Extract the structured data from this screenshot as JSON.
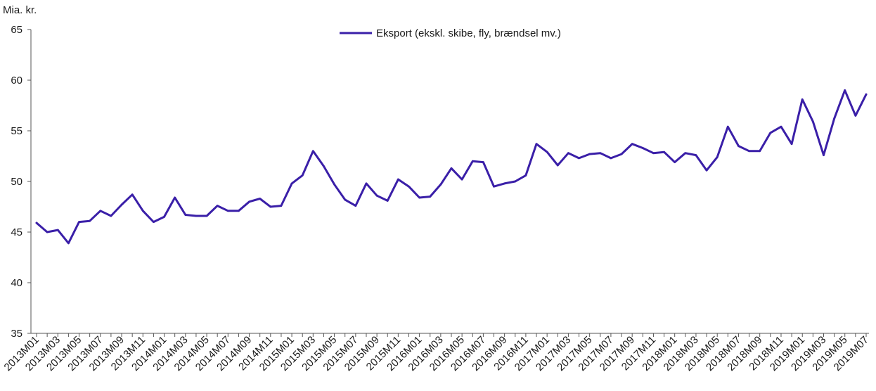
{
  "chart_data": {
    "type": "line",
    "title": "",
    "ylabel": "Mia. kr.",
    "xlabel": "",
    "ylim": [
      35,
      65
    ],
    "yticks": [
      35,
      40,
      45,
      50,
      55,
      60,
      65
    ],
    "grid": false,
    "legend_position": "top-center",
    "x": [
      "2013M01",
      "2013M02",
      "2013M03",
      "2013M04",
      "2013M05",
      "2013M06",
      "2013M07",
      "2013M08",
      "2013M09",
      "2013M10",
      "2013M11",
      "2013M12",
      "2014M01",
      "2014M02",
      "2014M03",
      "2014M04",
      "2014M05",
      "2014M06",
      "2014M07",
      "2014M08",
      "2014M09",
      "2014M10",
      "2014M11",
      "2014M12",
      "2015M01",
      "2015M02",
      "2015M03",
      "2015M04",
      "2015M05",
      "2015M06",
      "2015M07",
      "2015M08",
      "2015M09",
      "2015M10",
      "2015M11",
      "2015M12",
      "2016M01",
      "2016M02",
      "2016M03",
      "2016M04",
      "2016M05",
      "2016M06",
      "2016M07",
      "2016M08",
      "2016M09",
      "2016M10",
      "2016M11",
      "2016M12",
      "2017M01",
      "2017M02",
      "2017M03",
      "2017M04",
      "2017M05",
      "2017M06",
      "2017M07",
      "2017M08",
      "2017M09",
      "2017M10",
      "2017M11",
      "2017M12",
      "2018M01",
      "2018M02",
      "2018M03",
      "2018M04",
      "2018M05",
      "2018M06",
      "2018M07",
      "2018M08",
      "2018M09",
      "2018M10",
      "2018M11",
      "2018M12",
      "2019M01",
      "2019M02",
      "2019M03",
      "2019M04",
      "2019M05",
      "2019M06",
      "2019M07"
    ],
    "xtick_labels": [
      "2013M01",
      "2013M03",
      "2013M05",
      "2013M07",
      "2013M09",
      "2013M11",
      "2014M01",
      "2014M03",
      "2014M05",
      "2014M07",
      "2014M09",
      "2014M11",
      "2015M01",
      "2015M03",
      "2015M05",
      "2015M07",
      "2015M09",
      "2015M11",
      "2016M01",
      "2016M03",
      "2016M05",
      "2016M07",
      "2016M09",
      "2016M11",
      "2017M01",
      "2017M03",
      "2017M05",
      "2017M07",
      "2017M09",
      "2017M11",
      "2018M01",
      "2018M03",
      "2018M05",
      "2018M07",
      "2018M09",
      "2018M11",
      "2019M01",
      "2019M03",
      "2019M05",
      "2019M07"
    ],
    "series": [
      {
        "name": "Eksport (ekskl. skibe, fly, brændsel mv.)",
        "color": "#3a1fa8",
        "values": [
          45.9,
          45.0,
          45.2,
          43.9,
          46.0,
          46.1,
          47.1,
          46.6,
          47.7,
          48.7,
          47.1,
          46.0,
          46.5,
          48.4,
          46.7,
          46.6,
          46.6,
          47.6,
          47.1,
          47.1,
          48.0,
          48.3,
          47.5,
          47.6,
          49.8,
          50.6,
          53.0,
          51.5,
          49.7,
          48.2,
          47.6,
          49.8,
          48.6,
          48.1,
          50.2,
          49.5,
          48.4,
          48.5,
          49.7,
          51.3,
          50.2,
          52.0,
          51.9,
          49.5,
          49.8,
          50.0,
          50.6,
          53.7,
          52.9,
          51.6,
          52.8,
          52.3,
          52.7,
          52.8,
          52.3,
          52.7,
          53.7,
          53.3,
          52.8,
          52.9,
          51.9,
          52.8,
          52.6,
          51.1,
          52.4,
          55.4,
          53.5,
          53.0,
          53.0,
          54.8,
          55.4,
          53.7,
          58.1,
          55.9,
          52.6,
          56.2,
          59.0,
          56.5,
          58.6
        ]
      }
    ]
  }
}
